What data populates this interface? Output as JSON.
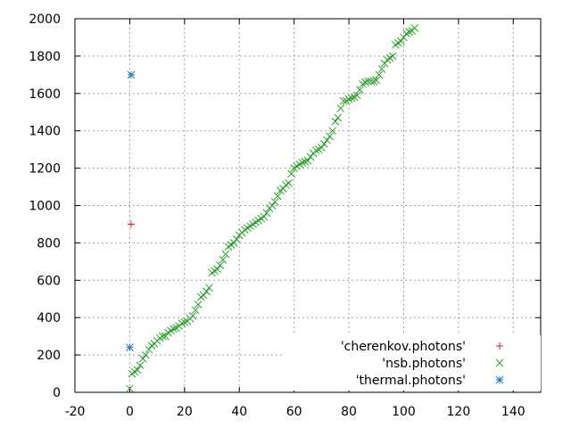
{
  "chart_data": {
    "type": "scatter",
    "title": "",
    "xlabel": "",
    "ylabel": "",
    "xlim": [
      -20,
      150
    ],
    "ylim": [
      0,
      2000
    ],
    "x_ticks": [
      -20,
      0,
      20,
      40,
      60,
      80,
      100,
      120,
      140
    ],
    "y_ticks": [
      0,
      200,
      400,
      600,
      800,
      1000,
      1200,
      1400,
      1600,
      1800,
      2000
    ],
    "grid": true,
    "legend_position": "bottom-right",
    "series": [
      {
        "name": "'cherenkov.photons'",
        "marker": "plus",
        "color": "#e41a1c",
        "points": [
          [
            0.5,
            900
          ]
        ]
      },
      {
        "name": "'nsb.photons'",
        "marker": "cross",
        "color": "#2ca02c",
        "points": [
          [
            0,
            20
          ],
          [
            0.8,
            100
          ],
          [
            1.8,
            110
          ],
          [
            2.8,
            120
          ],
          [
            3.8,
            145
          ],
          [
            4.8,
            180
          ],
          [
            5.8,
            200
          ],
          [
            7,
            230
          ],
          [
            8,
            250
          ],
          [
            9,
            260
          ],
          [
            10,
            275
          ],
          [
            11,
            290
          ],
          [
            12,
            300
          ],
          [
            13,
            300
          ],
          [
            14,
            320
          ],
          [
            15,
            330
          ],
          [
            16,
            340
          ],
          [
            17,
            345
          ],
          [
            18,
            355
          ],
          [
            19,
            370
          ],
          [
            20,
            375
          ],
          [
            21,
            380
          ],
          [
            22,
            395
          ],
          [
            23,
            410
          ],
          [
            24,
            440
          ],
          [
            25,
            470
          ],
          [
            26,
            510
          ],
          [
            27,
            520
          ],
          [
            28,
            540
          ],
          [
            29,
            560
          ],
          [
            30,
            640
          ],
          [
            31,
            650
          ],
          [
            32,
            660
          ],
          [
            33,
            680
          ],
          [
            34,
            710
          ],
          [
            35,
            740
          ],
          [
            36,
            780
          ],
          [
            37,
            790
          ],
          [
            38,
            800
          ],
          [
            39,
            820
          ],
          [
            40,
            840
          ],
          [
            41,
            855
          ],
          [
            42,
            870
          ],
          [
            43,
            880
          ],
          [
            44,
            890
          ],
          [
            45,
            900
          ],
          [
            46,
            910
          ],
          [
            47,
            920
          ],
          [
            48,
            930
          ],
          [
            49,
            940
          ],
          [
            50,
            960
          ],
          [
            51,
            985
          ],
          [
            52,
            1000
          ],
          [
            53,
            1020
          ],
          [
            54,
            1050
          ],
          [
            55,
            1080
          ],
          [
            56,
            1090
          ],
          [
            57,
            1110
          ],
          [
            58,
            1120
          ],
          [
            59,
            1170
          ],
          [
            60,
            1200
          ],
          [
            61,
            1210
          ],
          [
            62,
            1220
          ],
          [
            63,
            1230
          ],
          [
            64,
            1235
          ],
          [
            65,
            1240
          ],
          [
            66,
            1260
          ],
          [
            67,
            1280
          ],
          [
            68,
            1295
          ],
          [
            69,
            1300
          ],
          [
            70,
            1310
          ],
          [
            71,
            1330
          ],
          [
            72,
            1350
          ],
          [
            73,
            1370
          ],
          [
            74,
            1400
          ],
          [
            75,
            1450
          ],
          [
            76,
            1470
          ],
          [
            77,
            1520
          ],
          [
            78,
            1560
          ],
          [
            79,
            1560
          ],
          [
            80,
            1570
          ],
          [
            81,
            1575
          ],
          [
            82,
            1580
          ],
          [
            83,
            1590
          ],
          [
            84,
            1620
          ],
          [
            85,
            1650
          ],
          [
            86,
            1660
          ],
          [
            87,
            1665
          ],
          [
            88,
            1665
          ],
          [
            89,
            1665
          ],
          [
            90,
            1670
          ],
          [
            91,
            1700
          ],
          [
            92,
            1730
          ],
          [
            93,
            1760
          ],
          [
            94,
            1780
          ],
          [
            95,
            1790
          ],
          [
            96,
            1800
          ],
          [
            97,
            1860
          ],
          [
            98,
            1870
          ],
          [
            99,
            1880
          ],
          [
            100,
            1900
          ],
          [
            101,
            1920
          ],
          [
            102,
            1930
          ],
          [
            103,
            1935
          ],
          [
            104,
            1950
          ]
        ]
      },
      {
        "name": "'thermal.photons'",
        "marker": "star",
        "color": "#1f77b4",
        "points": [
          [
            0,
            240
          ],
          [
            0.5,
            1700
          ]
        ]
      }
    ]
  }
}
